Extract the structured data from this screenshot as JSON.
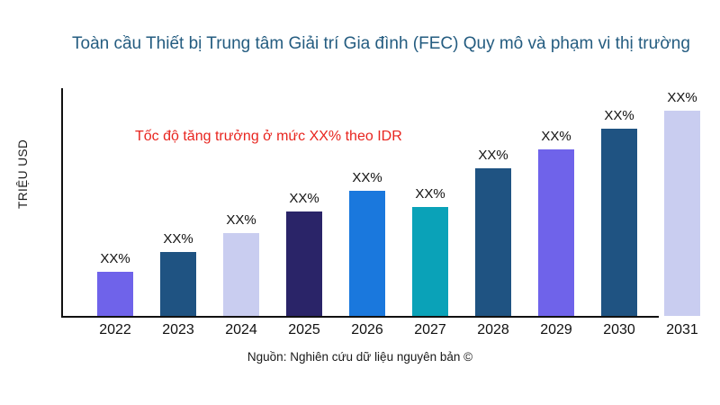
{
  "title": "Toàn cầu Thiết bị Trung tâm Giải trí Gia đình (FEC) Quy mô và phạm vi thị trường",
  "y_axis_label": "TRIỆU USD",
  "annotation": "Tốc độ tăng trưởng ở mức XX% theo IDR",
  "source": "Nguồn: Nghiên cứu dữ liệu nguyên bản ©",
  "colors": {
    "title_text": "#245c80",
    "annotation_text": "#e8251f",
    "axis": "#111111",
    "purple": "#6f63ea",
    "dark_steel_blue": "#1f5382",
    "light_lavender": "#c9cdf0",
    "dark_navy": "#2a2468",
    "bright_blue": "#1a78dd",
    "teal": "#0aa2b8"
  },
  "chart_data": {
    "type": "bar",
    "title": "Toàn cầu Thiết bị Trung tâm Giải trí Gia đình (FEC) Quy mô và phạm vi thị trường",
    "xlabel": "",
    "ylabel": "TRIỆU USD",
    "annotation": "Tốc độ tăng trưởng ở mức XX% theo IDR",
    "legend_position": "none",
    "grid": false,
    "y_axis_ticks_visible": false,
    "categories": [
      "2022",
      "2023",
      "2024",
      "2025",
      "2026",
      "2027",
      "2028",
      "2029",
      "2030",
      "2031"
    ],
    "values": [
      49,
      71,
      92,
      116,
      139,
      121,
      164,
      185,
      208,
      228
    ],
    "values_unit": "relative-height",
    "value_labels": [
      "XX%",
      "XX%",
      "XX%",
      "XX%",
      "XX%",
      "XX%",
      "XX%",
      "XX%",
      "XX%",
      "XX%"
    ],
    "bar_colors": [
      "#6f63ea",
      "#1f5382",
      "#c9cdf0",
      "#2a2468",
      "#1a78dd",
      "#0aa2b8",
      "#1f5382",
      "#6f63ea",
      "#1f5382",
      "#c9cdf0"
    ]
  }
}
